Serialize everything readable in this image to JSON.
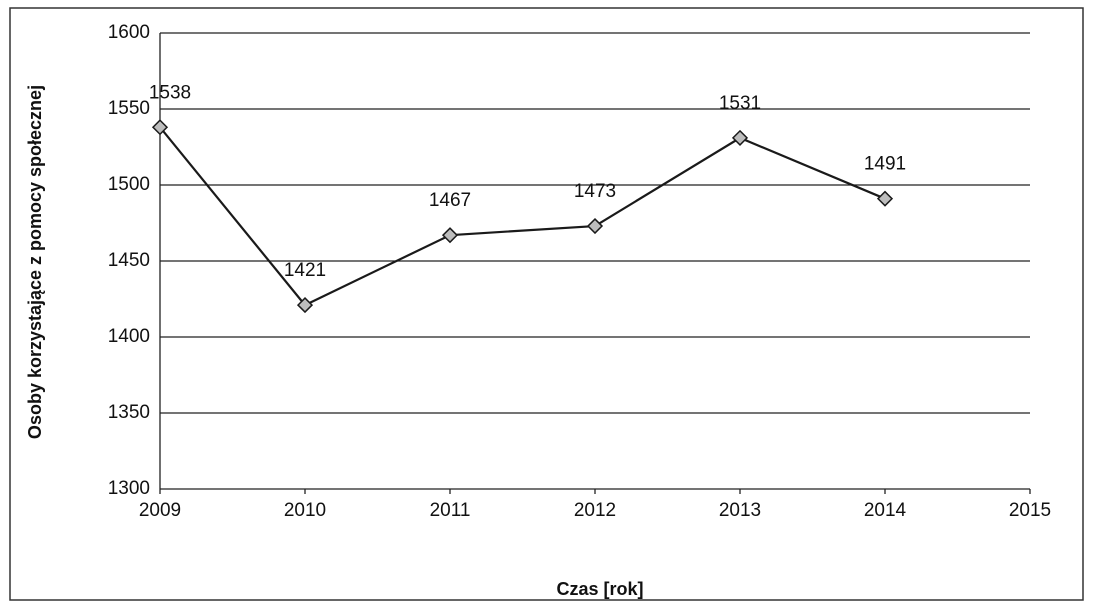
{
  "chart_data": {
    "type": "line",
    "x": [
      2009,
      2010,
      2011,
      2012,
      2013,
      2014
    ],
    "values": [
      1538,
      1421,
      1467,
      1473,
      1531,
      1491
    ],
    "color": "#1a1a1a",
    "marker_color": "#bdbdbd",
    "xlabel": "Czas [rok]",
    "ylabel": "Osoby korzystające z pomocy społecznej",
    "xlim": [
      2009,
      2015
    ],
    "xticks": [
      2009,
      2010,
      2011,
      2012,
      2013,
      2014,
      2015
    ],
    "ylim": [
      1300,
      1600
    ],
    "yticks": [
      1300,
      1350,
      1400,
      1450,
      1500,
      1550,
      1600
    ],
    "grid": true
  }
}
